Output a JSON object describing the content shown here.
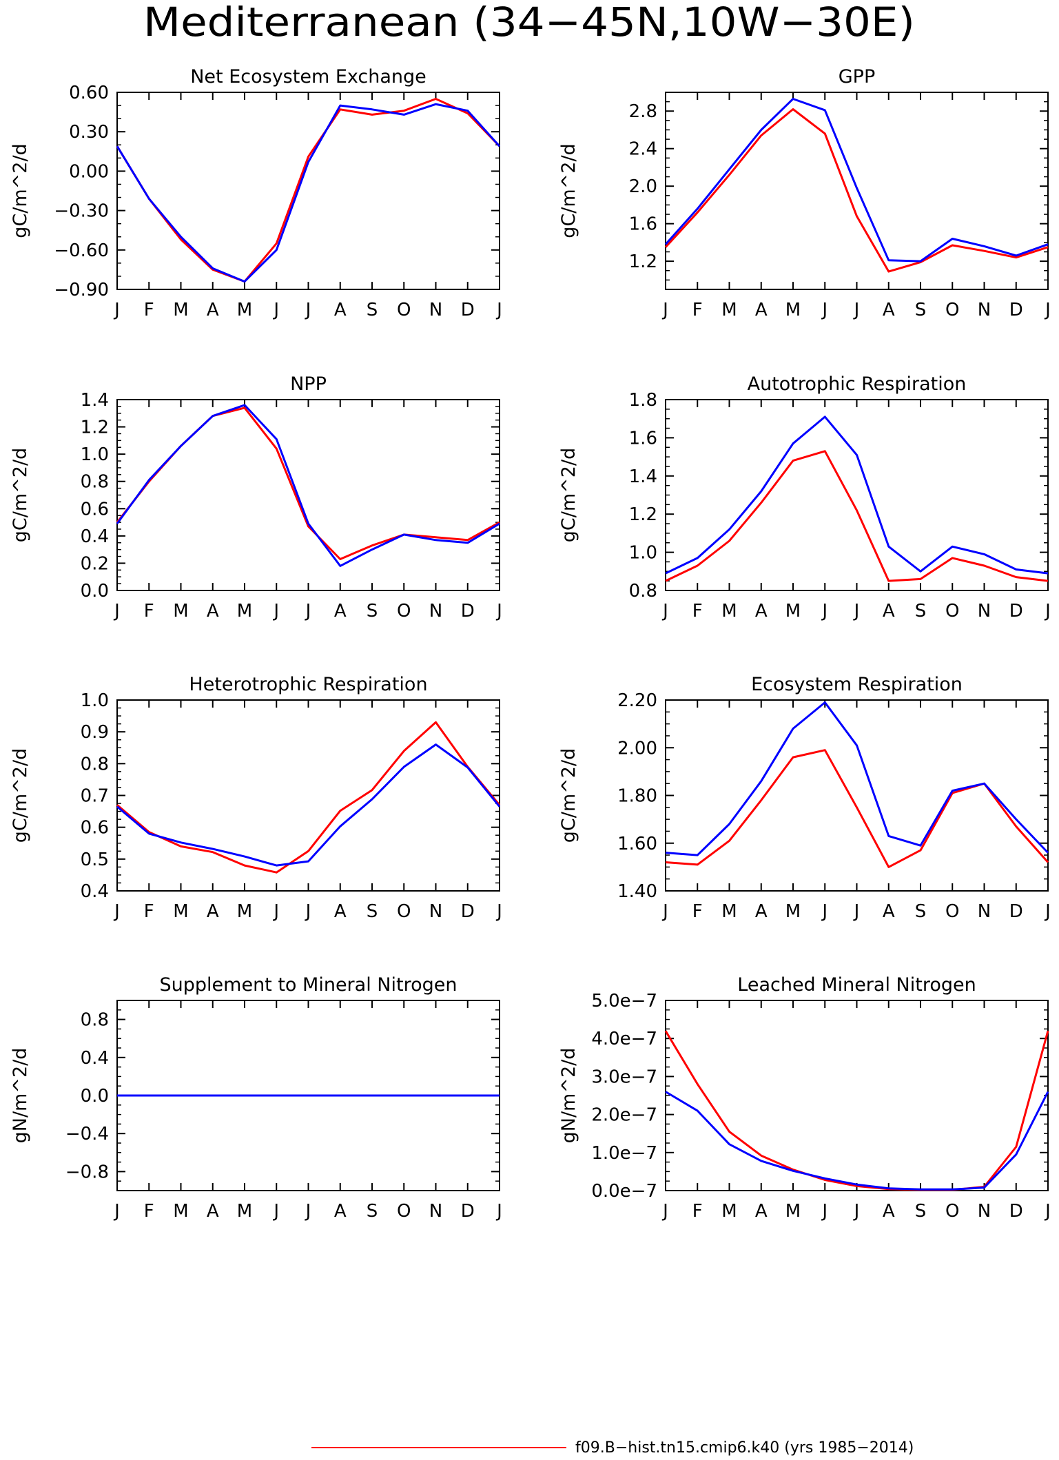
{
  "figure": {
    "title": "Mediterranean (34−45N,10W−30E)",
    "legend": [
      {
        "label": "f09.B−hist.tn15.cmip6.k40 (yrs 1985−2014)",
        "color": "#ff0000"
      }
    ]
  },
  "colors": {
    "series_a": "#ff0000",
    "series_b": "#0000ff"
  },
  "chart_data": [
    {
      "type": "line",
      "title": "Net Ecosystem Exchange",
      "ylabel": "gC/m^2/d",
      "categories": [
        "J",
        "F",
        "M",
        "A",
        "M",
        "J",
        "J",
        "A",
        "S",
        "O",
        "N",
        "D",
        "J"
      ],
      "ylim": [
        -0.9,
        0.6
      ],
      "yticks": [
        -0.9,
        -0.6,
        -0.3,
        0.0,
        0.3,
        0.6
      ],
      "ytick_labels": [
        "−0.90",
        "−0.60",
        "−0.30",
        "0.00",
        "0.30",
        "0.60"
      ],
      "yminor": 0.1,
      "series": [
        {
          "color": "#ff0000",
          "values": [
            0.19,
            -0.21,
            -0.52,
            -0.75,
            -0.84,
            -0.55,
            0.11,
            0.47,
            0.43,
            0.46,
            0.55,
            0.44,
            0.19
          ]
        },
        {
          "color": "#0000ff",
          "values": [
            0.19,
            -0.21,
            -0.5,
            -0.74,
            -0.84,
            -0.6,
            0.07,
            0.5,
            0.47,
            0.43,
            0.51,
            0.46,
            0.19
          ]
        }
      ]
    },
    {
      "type": "line",
      "title": "GPP",
      "ylabel": "gC/m^2/d",
      "categories": [
        "J",
        "F",
        "M",
        "A",
        "M",
        "J",
        "J",
        "A",
        "S",
        "O",
        "N",
        "D",
        "J"
      ],
      "ylim": [
        0.9,
        3.0
      ],
      "yticks": [
        1.2,
        1.6,
        2.0,
        2.4,
        2.8
      ],
      "ytick_labels": [
        "1.2",
        "1.6",
        "2.0",
        "2.4",
        "2.8"
      ],
      "yminor": 0.1,
      "series": [
        {
          "color": "#ff0000",
          "values": [
            1.35,
            1.72,
            2.12,
            2.54,
            2.82,
            2.56,
            1.68,
            1.09,
            1.19,
            1.37,
            1.31,
            1.24,
            1.35
          ]
        },
        {
          "color": "#0000ff",
          "values": [
            1.38,
            1.76,
            2.18,
            2.6,
            2.93,
            2.81,
            1.98,
            1.21,
            1.2,
            1.44,
            1.36,
            1.26,
            1.38
          ]
        }
      ]
    },
    {
      "type": "line",
      "title": "NPP",
      "ylabel": "gC/m^2/d",
      "categories": [
        "J",
        "F",
        "M",
        "A",
        "M",
        "J",
        "J",
        "A",
        "S",
        "O",
        "N",
        "D",
        "J"
      ],
      "ylim": [
        0.0,
        1.4
      ],
      "yticks": [
        0.0,
        0.2,
        0.4,
        0.6,
        0.8,
        1.0,
        1.2,
        1.4
      ],
      "ytick_labels": [
        "0.0",
        "0.2",
        "0.4",
        "0.6",
        "0.8",
        "1.0",
        "1.2",
        "1.4"
      ],
      "yminor": 0.05,
      "series": [
        {
          "color": "#ff0000",
          "values": [
            0.5,
            0.8,
            1.06,
            1.28,
            1.34,
            1.04,
            0.47,
            0.23,
            0.33,
            0.41,
            0.39,
            0.37,
            0.5
          ]
        },
        {
          "color": "#0000ff",
          "values": [
            0.49,
            0.81,
            1.06,
            1.28,
            1.36,
            1.11,
            0.49,
            0.18,
            0.3,
            0.41,
            0.37,
            0.35,
            0.49
          ]
        }
      ]
    },
    {
      "type": "line",
      "title": "Autotrophic Respiration",
      "ylabel": "gC/m^2/d",
      "categories": [
        "J",
        "F",
        "M",
        "A",
        "M",
        "J",
        "J",
        "A",
        "S",
        "O",
        "N",
        "D",
        "J"
      ],
      "ylim": [
        0.8,
        1.8
      ],
      "yticks": [
        0.8,
        1.0,
        1.2,
        1.4,
        1.6,
        1.8
      ],
      "ytick_labels": [
        "0.8",
        "1.0",
        "1.2",
        "1.4",
        "1.6",
        "1.8"
      ],
      "yminor": 0.05,
      "series": [
        {
          "color": "#ff0000",
          "values": [
            0.85,
            0.93,
            1.06,
            1.26,
            1.48,
            1.53,
            1.22,
            0.85,
            0.86,
            0.97,
            0.93,
            0.87,
            0.85
          ]
        },
        {
          "color": "#0000ff",
          "values": [
            0.89,
            0.97,
            1.12,
            1.32,
            1.57,
            1.71,
            1.51,
            1.03,
            0.9,
            1.03,
            0.99,
            0.91,
            0.89
          ]
        }
      ]
    },
    {
      "type": "line",
      "title": "Heterotrophic Respiration",
      "ylabel": "gC/m^2/d",
      "categories": [
        "J",
        "F",
        "M",
        "A",
        "M",
        "J",
        "J",
        "A",
        "S",
        "O",
        "N",
        "D",
        "J"
      ],
      "ylim": [
        0.4,
        1.0
      ],
      "yticks": [
        0.4,
        0.5,
        0.6,
        0.7,
        0.8,
        0.9,
        1.0
      ],
      "ytick_labels": [
        "0.4",
        "0.5",
        "0.6",
        "0.7",
        "0.8",
        "0.9",
        "1.0"
      ],
      "yminor": 0.025,
      "series": [
        {
          "color": "#ff0000",
          "values": [
            0.67,
            0.585,
            0.54,
            0.522,
            0.48,
            0.458,
            0.525,
            0.652,
            0.717,
            0.84,
            0.93,
            0.79,
            0.67
          ]
        },
        {
          "color": "#0000ff",
          "values": [
            0.665,
            0.58,
            0.552,
            0.532,
            0.508,
            0.48,
            0.493,
            0.603,
            0.688,
            0.79,
            0.86,
            0.788,
            0.665
          ]
        }
      ]
    },
    {
      "type": "line",
      "title": "Ecosystem Respiration",
      "ylabel": "gC/m^2/d",
      "categories": [
        "J",
        "F",
        "M",
        "A",
        "M",
        "J",
        "J",
        "A",
        "S",
        "O",
        "N",
        "D",
        "J"
      ],
      "ylim": [
        1.4,
        2.2
      ],
      "yticks": [
        1.4,
        1.6,
        1.8,
        2.0,
        2.2
      ],
      "ytick_labels": [
        "1.40",
        "1.60",
        "1.80",
        "2.00",
        "2.20"
      ],
      "yminor": 0.05,
      "series": [
        {
          "color": "#ff0000",
          "values": [
            1.52,
            1.51,
            1.61,
            1.78,
            1.96,
            1.99,
            1.75,
            1.5,
            1.57,
            1.81,
            1.85,
            1.67,
            1.52
          ]
        },
        {
          "color": "#0000ff",
          "values": [
            1.56,
            1.55,
            1.68,
            1.86,
            2.08,
            2.19,
            2.01,
            1.63,
            1.59,
            1.82,
            1.85,
            1.7,
            1.56
          ]
        }
      ]
    },
    {
      "type": "line",
      "title": "Supplement to Mineral Nitrogen",
      "ylabel": "gN/m^2/d",
      "categories": [
        "J",
        "F",
        "M",
        "A",
        "M",
        "J",
        "J",
        "A",
        "S",
        "O",
        "N",
        "D",
        "J"
      ],
      "ylim": [
        -1.0,
        1.0
      ],
      "yticks": [
        -0.8,
        -0.4,
        0.0,
        0.4,
        0.8
      ],
      "ytick_labels": [
        "−0.8",
        "−0.4",
        "0.0",
        "0.4",
        "0.8"
      ],
      "yminor": 0.1,
      "series": [
        {
          "color": "#ff0000",
          "values": [
            0,
            0,
            0,
            0,
            0,
            0,
            0,
            0,
            0,
            0,
            0,
            0,
            0
          ]
        },
        {
          "color": "#0000ff",
          "values": [
            0,
            0,
            0,
            0,
            0,
            0,
            0,
            0,
            0,
            0,
            0,
            0,
            0
          ]
        }
      ]
    },
    {
      "type": "line",
      "title": "Leached Mineral Nitrogen",
      "ylabel": "gN/m^2/d",
      "categories": [
        "J",
        "F",
        "M",
        "A",
        "M",
        "J",
        "J",
        "A",
        "S",
        "O",
        "N",
        "D",
        "J"
      ],
      "ylim": [
        0.0,
        5e-07
      ],
      "yticks": [
        0.0,
        1e-07,
        2e-07,
        3e-07,
        4e-07,
        5e-07
      ],
      "ytick_labels": [
        "0.0e−7",
        "1.0e−7",
        "2.0e−7",
        "3.0e−7",
        "4.0e−7",
        "5.0e−7"
      ],
      "yminor": 2.5e-08,
      "series": [
        {
          "color": "#ff0000",
          "values": [
            4.2e-07,
            2.8e-07,
            1.55e-07,
            9.2e-08,
            5.5e-08,
            2.8e-08,
            1.2e-08,
            4e-09,
            2e-09,
            2e-09,
            1e-08,
            1.15e-07,
            4.2e-07
          ]
        },
        {
          "color": "#0000ff",
          "values": [
            2.6e-07,
            2.1e-07,
            1.22e-07,
            7.8e-08,
            5.2e-08,
            3.2e-08,
            1.6e-08,
            6e-09,
            3e-09,
            3e-09,
            8e-09,
            9.5e-08,
            2.6e-07
          ]
        }
      ]
    }
  ]
}
